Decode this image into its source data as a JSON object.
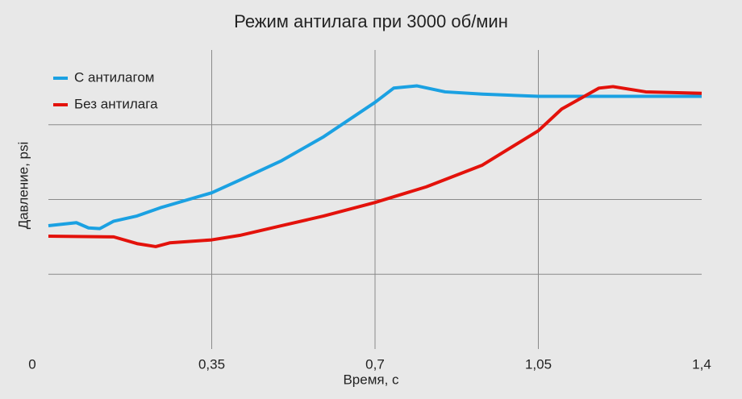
{
  "chart_data": {
    "type": "line",
    "title": "Режим антилага при 3000 об/мин",
    "x_label": "Время, с",
    "y_label": "Давление, psi",
    "series": [
      {
        "name": "С антилагом",
        "color": "#1ba1e2",
        "x": [
          0,
          0.06,
          0.086,
          0.11,
          0.14,
          0.19,
          0.24,
          0.35,
          0.41,
          0.5,
          0.59,
          0.7,
          0.74,
          0.79,
          0.85,
          0.93,
          1.05,
          1.23,
          1.4
        ],
        "values": [
          1.65,
          1.69,
          1.62,
          1.61,
          1.71,
          1.78,
          1.89,
          2.09,
          2.26,
          2.52,
          2.84,
          3.3,
          3.49,
          3.52,
          3.44,
          3.41,
          3.38,
          3.38,
          3.38
        ]
      },
      {
        "name": "Без антилага",
        "color": "#e3120b",
        "x": [
          0,
          0.14,
          0.19,
          0.23,
          0.26,
          0.35,
          0.41,
          0.5,
          0.59,
          0.7,
          0.81,
          0.93,
          1.05,
          1.1,
          1.18,
          1.21,
          1.28,
          1.4
        ],
        "values": [
          1.51,
          1.5,
          1.41,
          1.37,
          1.42,
          1.46,
          1.52,
          1.65,
          1.78,
          1.96,
          2.17,
          2.46,
          2.92,
          3.21,
          3.49,
          3.51,
          3.44,
          3.42
        ]
      }
    ],
    "xlim": [
      0,
      1.4
    ],
    "xticks": [
      0,
      {
        "value": 0.35,
        "label": "0,35"
      },
      {
        "value": 0.7,
        "label": "0,7"
      },
      {
        "value": 1.05,
        "label": "1,05"
      },
      {
        "value": 1.4,
        "label": "1,4"
      }
    ],
    "ylim": [
      0,
      4
    ],
    "yticks": [
      {
        "value": 1,
        "label": null
      },
      {
        "value": 2,
        "label": null
      },
      {
        "value": 3,
        "label": null
      }
    ],
    "grid": true,
    "legend": "top-left"
  }
}
